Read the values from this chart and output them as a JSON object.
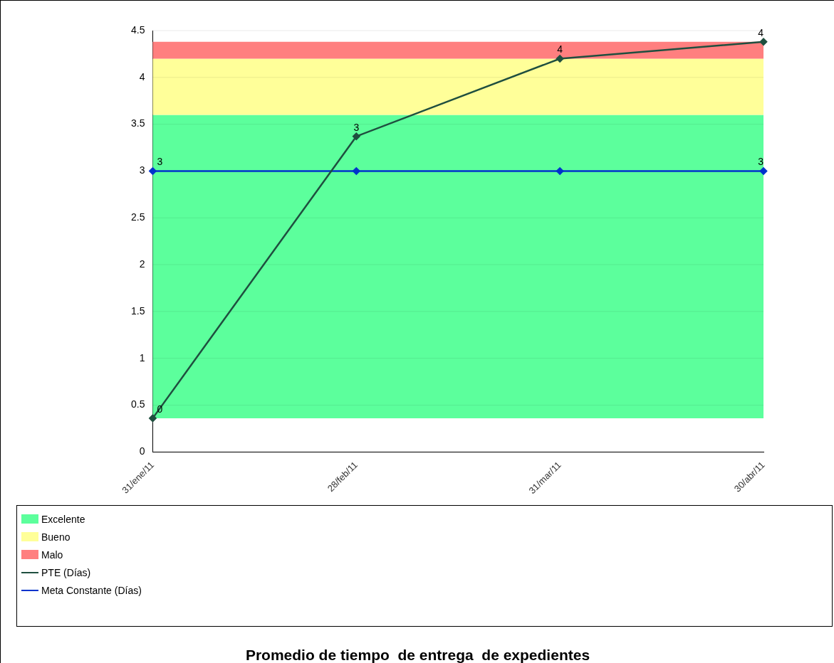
{
  "chart_data": {
    "type": "line",
    "title": "Promedio de tiempo  de entrega  de expedientes",
    "categories": [
      "31/ene/11",
      "28/feb/11",
      "31/mar/11",
      "30/abr/11"
    ],
    "series": [
      {
        "name": "PTE (Días)",
        "color": "#1f4f3f",
        "values": [
          0.36,
          3.37,
          4.2,
          4.38
        ],
        "value_labels": [
          "0",
          "3",
          "4",
          "4"
        ]
      },
      {
        "name": "Meta Constante (Días)",
        "color": "#0033cc",
        "values": [
          3,
          3,
          3,
          3
        ],
        "value_labels": [
          "3",
          null,
          null,
          "3"
        ]
      }
    ],
    "bands": [
      {
        "axis": "y",
        "from": 0.36,
        "to": 3.6,
        "label": "Excelente",
        "color": "#5cff9c"
      },
      {
        "axis": "y",
        "from": 3.6,
        "to": 4.2,
        "label": "Bueno",
        "color": "#ffff99"
      },
      {
        "axis": "y",
        "from": 4.2,
        "to": 4.38,
        "label": "Malo",
        "color": "#ff7f7f"
      }
    ],
    "ylim": [
      0,
      4.5
    ],
    "yticks": [
      0,
      0.5,
      1,
      1.5,
      2,
      2.5,
      3,
      3.5,
      4,
      4.5
    ],
    "grid": "y",
    "legend": "bottom",
    "marker": "diamond",
    "line_style": "solid"
  }
}
